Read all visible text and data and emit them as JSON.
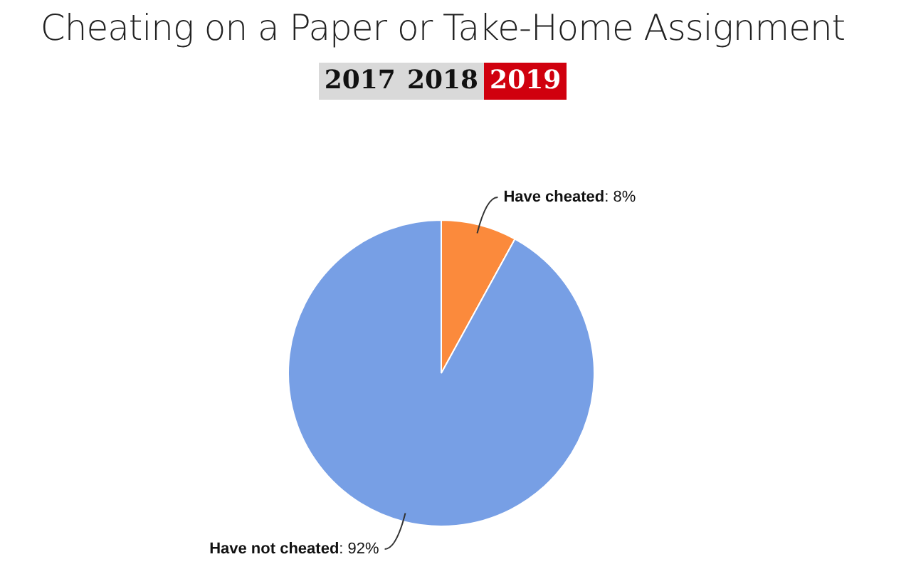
{
  "chart_data": {
    "type": "pie",
    "title": "Cheating on a Paper or Take-Home Assignment",
    "annotations": [
      "2017",
      "2018",
      "2019"
    ],
    "categories": [
      "Have cheated",
      "Have not cheated"
    ],
    "values": [
      8,
      92
    ],
    "colors": [
      "#fb8a3c",
      "#779fe5"
    ],
    "value_labels": [
      ": 8%",
      ": 92%"
    ],
    "legend": false
  }
}
